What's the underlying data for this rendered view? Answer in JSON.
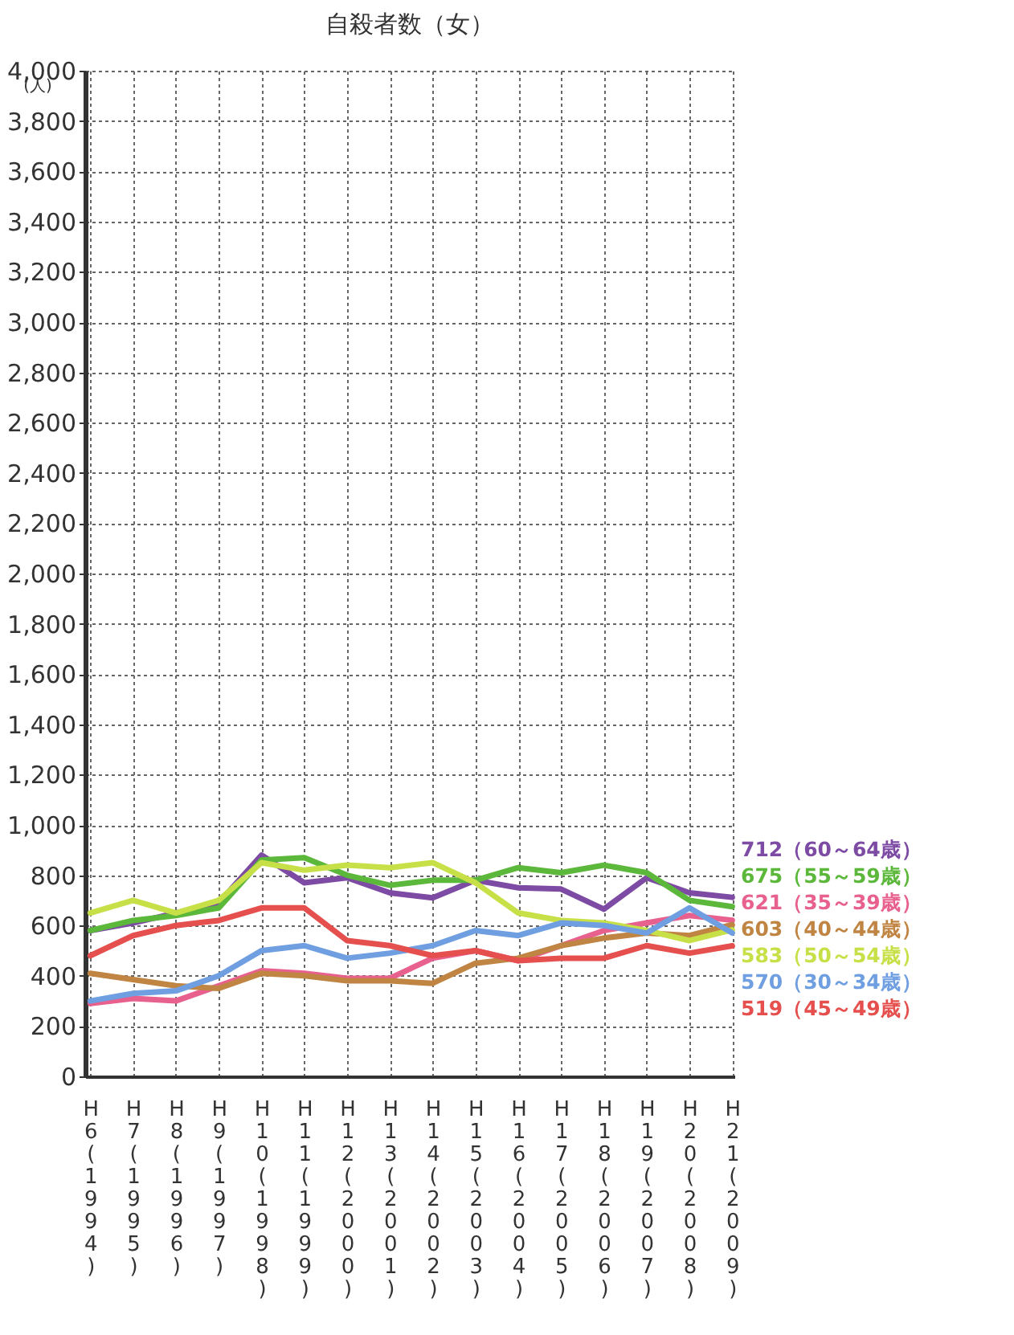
{
  "chart_data": {
    "type": "line",
    "title": "自殺者数（女）",
    "ylabel": "(人)",
    "categories": [
      "H6(1994)",
      "H7(1995)",
      "H8(1996)",
      "H9(1997)",
      "H10(1998)",
      "H11(1999)",
      "H12(2000)",
      "H13(2001)",
      "H14(2002)",
      "H15(2003)",
      "H16(2004)",
      "H17(2005)",
      "H18(2006)",
      "H19(2007)",
      "H20(2008)",
      "H21(2009)"
    ],
    "ylim": [
      0,
      4000
    ],
    "yticks": [
      {
        "value": 0,
        "label": "0"
      },
      {
        "value": 200,
        "label": "200"
      },
      {
        "value": 400,
        "label": "400"
      },
      {
        "value": 600,
        "label": "600"
      },
      {
        "value": 800,
        "label": "800"
      },
      {
        "value": 1000,
        "label": "1,000"
      },
      {
        "value": 1200,
        "label": "1,200"
      },
      {
        "value": 1400,
        "label": "1,400"
      },
      {
        "value": 1600,
        "label": "1,600"
      },
      {
        "value": 1800,
        "label": "1,800"
      },
      {
        "value": 2000,
        "label": "2,000"
      },
      {
        "value": 2200,
        "label": "2,200"
      },
      {
        "value": 2400,
        "label": "2,400"
      },
      {
        "value": 2600,
        "label": "2,600"
      },
      {
        "value": 2800,
        "label": "2,800"
      },
      {
        "value": 3000,
        "label": "3,000"
      },
      {
        "value": 3200,
        "label": "3,200"
      },
      {
        "value": 3400,
        "label": "3,400"
      },
      {
        "value": 3600,
        "label": "3,600"
      },
      {
        "value": 3800,
        "label": "3,800"
      },
      {
        "value": 4000,
        "label": "4,000"
      }
    ],
    "grid": true,
    "line_style": "solid",
    "marker": "none",
    "legend": "right",
    "series": [
      {
        "name": "712（60～64歳）",
        "color": "#7d4ba3",
        "values": [
          580,
          610,
          650,
          690,
          880,
          770,
          790,
          730,
          710,
          780,
          750,
          745,
          665,
          790,
          730,
          712
        ]
      },
      {
        "name": "675（55～59歳）",
        "color": "#5cb83a",
        "values": [
          580,
          620,
          640,
          670,
          860,
          870,
          800,
          760,
          780,
          780,
          830,
          810,
          840,
          810,
          700,
          675
        ]
      },
      {
        "name": "621（35～39歳）",
        "color": "#e8608e",
        "values": [
          290,
          310,
          300,
          360,
          420,
          410,
          390,
          390,
          470,
          500,
          460,
          520,
          580,
          610,
          640,
          621
        ]
      },
      {
        "name": "603（40～44歳）",
        "color": "#c08443",
        "values": [
          410,
          385,
          360,
          350,
          410,
          400,
          380,
          380,
          370,
          450,
          470,
          520,
          550,
          570,
          560,
          603
        ]
      },
      {
        "name": "583（50～54歳）",
        "color": "#c8e048",
        "values": [
          650,
          700,
          650,
          700,
          850,
          820,
          840,
          830,
          850,
          770,
          650,
          620,
          610,
          580,
          540,
          583
        ]
      },
      {
        "name": "570（30～34歳）",
        "color": "#6f9fe0",
        "values": [
          300,
          330,
          340,
          400,
          500,
          520,
          470,
          490,
          520,
          580,
          560,
          610,
          600,
          570,
          670,
          570
        ]
      },
      {
        "name": "519（45～49歳）",
        "color": "#e5504e",
        "values": [
          480,
          560,
          600,
          620,
          670,
          670,
          540,
          520,
          480,
          500,
          460,
          470,
          470,
          520,
          490,
          519
        ]
      }
    ]
  }
}
